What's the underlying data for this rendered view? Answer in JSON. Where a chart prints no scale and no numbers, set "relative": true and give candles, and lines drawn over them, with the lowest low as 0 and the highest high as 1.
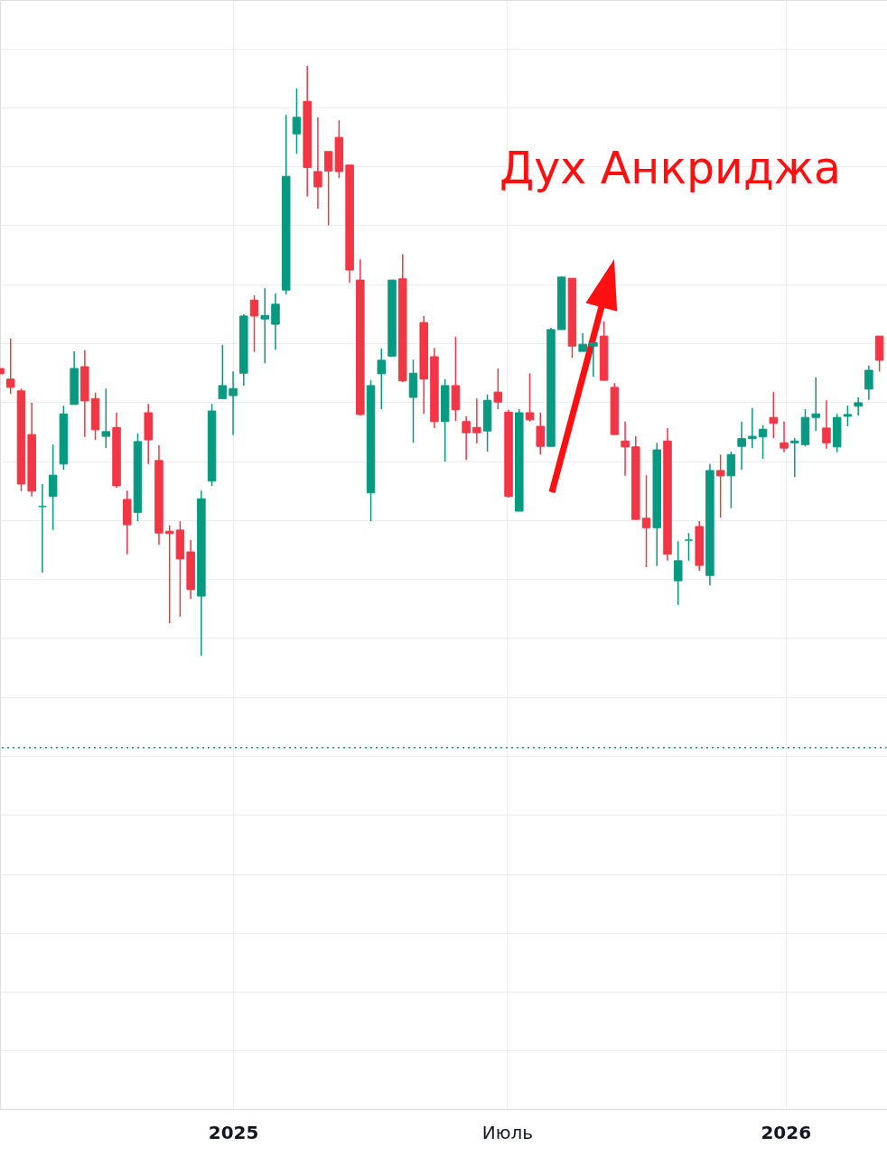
{
  "chart_data": {
    "type": "candlestick",
    "relative": true,
    "grid": true,
    "x": [
      "2024-07-31",
      "2024-08-07",
      "2024-08-14",
      "2024-08-21",
      "2024-08-28",
      "2024-09-04",
      "2024-09-11",
      "2024-09-18",
      "2024-09-25",
      "2024-10-02",
      "2024-10-09",
      "2024-10-16",
      "2024-10-23",
      "2024-10-30",
      "2024-11-06",
      "2024-11-13",
      "2024-11-20",
      "2024-11-27",
      "2024-12-04",
      "2024-12-11",
      "2024-12-18",
      "2024-12-25",
      "2025-01-01",
      "2025-01-08",
      "2025-01-15",
      "2025-01-22",
      "2025-01-29",
      "2025-02-05",
      "2025-02-12",
      "2025-02-19",
      "2025-02-26",
      "2025-03-05",
      "2025-03-12",
      "2025-03-19",
      "2025-03-26",
      "2025-04-02",
      "2025-04-09",
      "2025-04-16",
      "2025-04-23",
      "2025-04-30",
      "2025-05-07",
      "2025-05-14",
      "2025-05-21",
      "2025-05-28",
      "2025-06-04",
      "2025-06-11",
      "2025-06-18",
      "2025-06-25",
      "2025-07-02",
      "2025-07-09",
      "2025-07-16",
      "2025-07-23",
      "2025-07-30",
      "2025-08-06",
      "2025-08-13",
      "2025-08-20",
      "2025-08-27",
      "2025-09-03",
      "2025-09-10",
      "2025-09-17",
      "2025-09-24",
      "2025-10-01",
      "2025-10-08",
      "2025-10-15",
      "2025-10-22",
      "2025-10-29",
      "2025-11-05",
      "2025-11-12",
      "2025-11-19",
      "2025-11-26",
      "2025-12-03",
      "2025-12-10",
      "2025-12-17",
      "2025-12-24",
      "2025-12-31",
      "2026-01-07",
      "2026-01-14",
      "2026-01-21",
      "2026-01-28",
      "2026-02-04",
      "2026-02-11",
      "2026-02-18",
      "2026-02-25",
      "2026-03-04"
    ],
    "ohlc": [
      [
        0.487,
        0.487,
        0.478,
        0.478
      ],
      [
        0.469,
        0.538,
        0.444,
        0.455
      ],
      [
        0.449,
        0.453,
        0.279,
        0.291
      ],
      [
        0.375,
        0.429,
        0.27,
        0.279
      ],
      [
        0.253,
        0.291,
        0.141,
        0.253
      ],
      [
        0.27,
        0.358,
        0.213,
        0.306
      ],
      [
        0.325,
        0.424,
        0.315,
        0.41
      ],
      [
        0.426,
        0.516,
        0.426,
        0.487
      ],
      [
        0.49,
        0.518,
        0.371,
        0.432
      ],
      [
        0.436,
        0.446,
        0.366,
        0.383
      ],
      [
        0.372,
        0.453,
        0.352,
        0.38
      ],
      [
        0.387,
        0.412,
        0.285,
        0.288
      ],
      [
        0.265,
        0.28,
        0.172,
        0.222
      ],
      [
        0.243,
        0.377,
        0.228,
        0.363
      ],
      [
        0.412,
        0.427,
        0.325,
        0.366
      ],
      [
        0.331,
        0.357,
        0.188,
        0.208
      ],
      [
        0.211,
        0.221,
        0.055,
        0.207
      ],
      [
        0.213,
        0.228,
        0.066,
        0.164
      ],
      [
        0.176,
        0.196,
        0.096,
        0.112
      ],
      [
        0.101,
        0.28,
        0,
        0.266
      ],
      [
        0.296,
        0.427,
        0.288,
        0.415
      ],
      [
        0.436,
        0.527,
        0.436,
        0.458
      ],
      [
        0.441,
        0.482,
        0.374,
        0.453
      ],
      [
        0.479,
        0.579,
        0.458,
        0.576
      ],
      [
        0.603,
        0.611,
        0.515,
        0.576
      ],
      [
        0.571,
        0.623,
        0.496,
        0.577
      ],
      [
        0.562,
        0.614,
        0.519,
        0.596
      ],
      [
        0.62,
        0.917,
        0.613,
        0.813
      ],
      [
        0.885,
        0.962,
        0.851,
        0.913
      ],
      [
        0.94,
        1,
        0.779,
        0.828
      ],
      [
        0.821,
        0.913,
        0.758,
        0.795
      ],
      [
        0.855,
        0.855,
        0.73,
        0.822
      ],
      [
        0.879,
        0.908,
        0.81,
        0.821
      ],
      [
        0.832,
        0.832,
        0.632,
        0.654
      ],
      [
        0.637,
        0.672,
        0.407,
        0.409
      ],
      [
        0.276,
        0.467,
        0.228,
        0.458
      ],
      [
        0.478,
        0.521,
        0.418,
        0.501
      ],
      [
        0.508,
        0.637,
        0.508,
        0.637
      ],
      [
        0.639,
        0.681,
        0.464,
        0.466
      ],
      [
        0.438,
        0.502,
        0.361,
        0.479
      ],
      [
        0.565,
        0.576,
        0.41,
        0.469
      ],
      [
        0.507,
        0.522,
        0.386,
        0.397
      ],
      [
        0.397,
        0.469,
        0.329,
        0.458
      ],
      [
        0.458,
        0.541,
        0.398,
        0.417
      ],
      [
        0.397,
        0.406,
        0.332,
        0.378
      ],
      [
        0.387,
        0.436,
        0.36,
        0.378
      ],
      [
        0.381,
        0.443,
        0.346,
        0.433
      ],
      [
        0.447,
        0.487,
        0.418,
        0.43
      ],
      [
        0.413,
        0.417,
        0.268,
        0.27
      ],
      [
        0.245,
        0.418,
        0.245,
        0.412
      ],
      [
        0.412,
        0.479,
        0.397,
        0.4
      ],
      [
        0.389,
        0.412,
        0.341,
        0.355
      ],
      [
        0.355,
        0.556,
        0.355,
        0.553
      ],
      [
        0.553,
        0.643,
        0.553,
        0.642
      ],
      [
        0.64,
        0.64,
        0.505,
        0.525
      ],
      [
        0.516,
        0.547,
        0.516,
        0.528
      ],
      [
        0.525,
        0.531,
        0.473,
        0.531
      ],
      [
        0.542,
        0.567,
        0.467,
        0.467
      ],
      [
        0.455,
        0.462,
        0.375,
        0.375
      ],
      [
        0.364,
        0.397,
        0.305,
        0.354
      ],
      [
        0.354,
        0.372,
        0.23,
        0.231
      ],
      [
        0.233,
        0.306,
        0.15,
        0.217
      ],
      [
        0.217,
        0.361,
        0.152,
        0.349
      ],
      [
        0.364,
        0.386,
        0.161,
        0.172
      ],
      [
        0.127,
        0.194,
        0.086,
        0.161
      ],
      [
        0.196,
        0.208,
        0.161,
        0.196
      ],
      [
        0.219,
        0.228,
        0.144,
        0.153
      ],
      [
        0.136,
        0.325,
        0.119,
        0.314
      ],
      [
        0.314,
        0.341,
        0.234,
        0.305
      ],
      [
        0.305,
        0.346,
        0.25,
        0.341
      ],
      [
        0.355,
        0.397,
        0.315,
        0.368
      ],
      [
        0.368,
        0.42,
        0.352,
        0.372
      ],
      [
        0.371,
        0.391,
        0.334,
        0.384
      ],
      [
        0.404,
        0.447,
        0.369,
        0.394
      ],
      [
        0.361,
        0.397,
        0.345,
        0.352
      ],
      [
        0.361,
        0.369,
        0.303,
        0.364
      ],
      [
        0.358,
        0.418,
        0.355,
        0.404
      ],
      [
        0.404,
        0.472,
        0.381,
        0.41
      ],
      [
        0.386,
        0.433,
        0.351,
        0.361
      ],
      [
        0.354,
        0.41,
        0.345,
        0.404
      ],
      [
        0.406,
        0.424,
        0.389,
        0.409
      ],
      [
        0.423,
        0.438,
        0.407,
        0.429
      ],
      [
        0.452,
        0.492,
        0.434,
        0.484
      ],
      [
        0.542,
        0.542,
        0.482,
        0.501
      ]
    ],
    "colors": [
      "#f23645",
      "#f23645",
      "#f23645",
      "#f23645",
      "#089981",
      "#089981",
      "#089981",
      "#089981",
      "#f23645",
      "#f23645",
      "#089981",
      "#f23645",
      "#f23645",
      "#089981",
      "#f23645",
      "#f23645",
      "#f23645",
      "#f23645",
      "#f23645",
      "#089981",
      "#089981",
      "#089981",
      "#089981",
      "#089981",
      "#f23645",
      "#089981",
      "#089981",
      "#089981",
      "#089981",
      "#f23645",
      "#f23645",
      "#f23645",
      "#f23645",
      "#f23645",
      "#f23645",
      "#089981",
      "#089981",
      "#089981",
      "#f23645",
      "#089981",
      "#f23645",
      "#f23645",
      "#089981",
      "#f23645",
      "#f23645",
      "#f23645",
      "#089981",
      "#f23645",
      "#f23645",
      "#089981",
      "#f23645",
      "#f23645",
      "#089981",
      "#089981",
      "#f23645",
      "#089981",
      "#089981",
      "#f23645",
      "#f23645",
      "#f23645",
      "#f23645",
      "#f23645",
      "#089981",
      "#f23645",
      "#089981",
      "#089981",
      "#f23645",
      "#089981",
      "#f23645",
      "#089981",
      "#089981",
      "#089981",
      "#089981",
      "#f23645",
      "#f23645",
      "#089981",
      "#089981",
      "#089981",
      "#f23645",
      "#089981",
      "#089981",
      "#089981",
      "#089981",
      "#f23645"
    ],
    "xlim": [
      "2024-07-31",
      "2026-03-09"
    ],
    "xticks": [
      {
        "value": "2025-01-01",
        "label": "2025"
      },
      {
        "value": "2025-07-01",
        "label": "Июль"
      },
      {
        "value": "2026-01-01",
        "label": "2026"
      }
    ],
    "ref_lines": [
      {
        "axis": "y",
        "value": -0.156,
        "color": "#089981",
        "line_style": "dotted"
      }
    ],
    "annotations": [
      "Дух Анкриджа"
    ]
  }
}
